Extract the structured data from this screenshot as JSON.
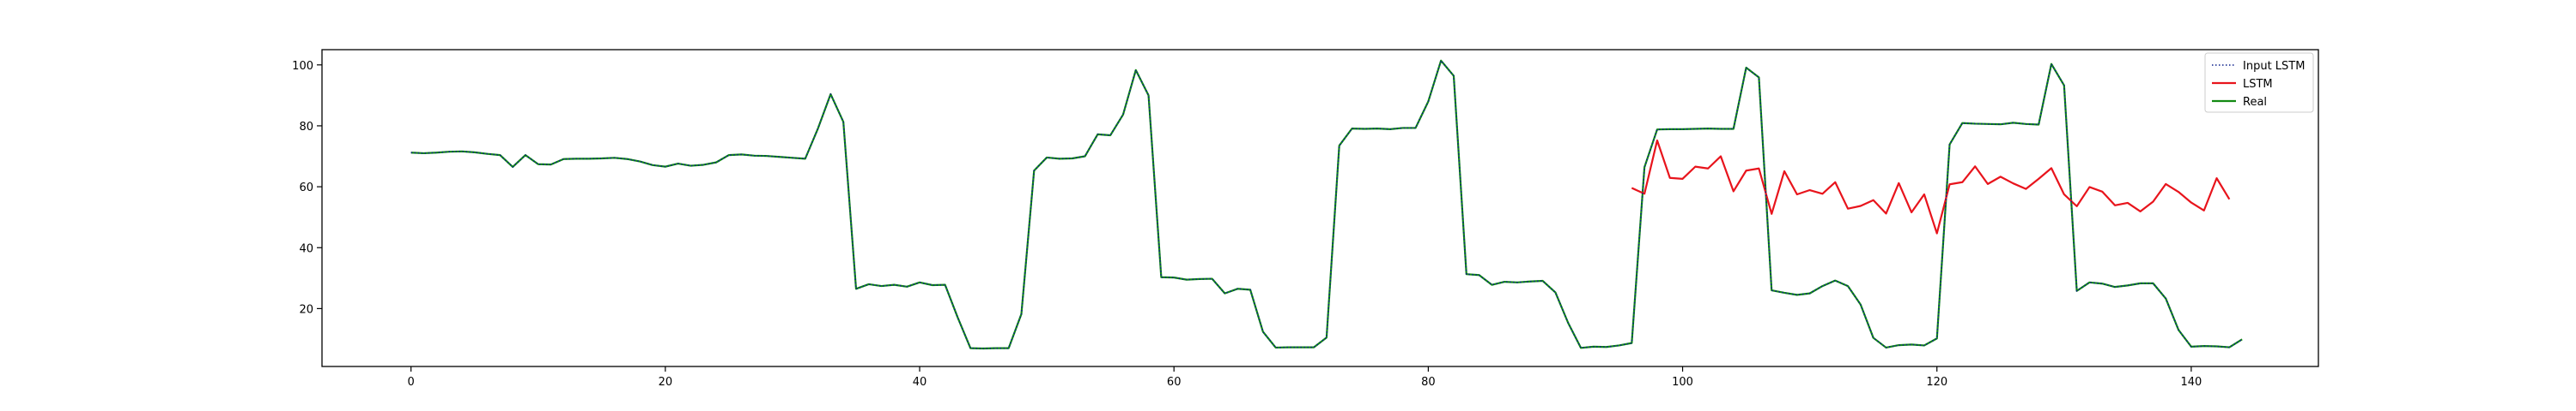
{
  "chart_data": {
    "type": "line",
    "title": "",
    "xlabel": "",
    "ylabel": "",
    "xlim": [
      -7,
      150
    ],
    "ylim": [
      1,
      105
    ],
    "xticks": [
      0,
      20,
      40,
      60,
      80,
      100,
      120,
      140
    ],
    "yticks": [
      20,
      40,
      60,
      80,
      100
    ],
    "grid": false,
    "legend_position": "top-right",
    "series": [
      {
        "name": "Input LSTM",
        "color": "#0b1f8a",
        "style": "dotted",
        "x_start": 0,
        "values": [
          71.2,
          71,
          71.2,
          71.5,
          71.6,
          71.3,
          70.8,
          70.4,
          66.5,
          70.4,
          67.4,
          67.3,
          69.1,
          69.2,
          69.2,
          69.3,
          69.5,
          69.1,
          68.3,
          67.1,
          66.6,
          67.6,
          66.9,
          67.2,
          68,
          70.4,
          70.6,
          70.2,
          70.1,
          69.8,
          69.5,
          69.2,
          79.1,
          90.4,
          81.3,
          26.5,
          28,
          27.4,
          27.8,
          27.2,
          28.6,
          27.7,
          27.8,
          17,
          7,
          6.9,
          7,
          7,
          18.2,
          65.3,
          69.6,
          69.2,
          69.3,
          70,
          77.2,
          76.9,
          83.7,
          98.3,
          90,
          30.3,
          30.2,
          29.5,
          29.7,
          29.8,
          25,
          26.5,
          26.2,
          12.4,
          7.2,
          7.3,
          7.3,
          7.3,
          10.5,
          73.5,
          79.1,
          79,
          79.1,
          78.9,
          79.3,
          79.3,
          88,
          101.4,
          96.4,
          31.3,
          31,
          27.8,
          28.8,
          28.6,
          28.9,
          29.1,
          25.3,
          15.3,
          7.1,
          7.5,
          7.4,
          7.9,
          8.7,
          66.4,
          78.8,
          78.9,
          78.9,
          79,
          79.1,
          79,
          79,
          99.1,
          95.9,
          26,
          25.2,
          24.5,
          25,
          27.4,
          29.2,
          27.4,
          21.3,
          10.4,
          7.2,
          8,
          8.2,
          7.9,
          10.2,
          73.9,
          80.9,
          80.7,
          80.6,
          80.5,
          81,
          80.6,
          80.4,
          100.3,
          93.3,
          25.8,
          28.6,
          28.2,
          27.1,
          27.6,
          28.3,
          28.3,
          23.3,
          13,
          7.5,
          7.7,
          7.6,
          7.3,
          9.9
        ]
      },
      {
        "name": "LSTM",
        "color": "#e8141c",
        "style": "solid",
        "x_start": 96,
        "values": [
          59.6,
          57.7,
          75.2,
          62.9,
          62.6,
          66.6,
          66,
          70,
          58.5,
          65.3,
          66,
          51.1,
          65.1,
          57.5,
          58.9,
          57.7,
          61.5,
          52.8,
          53.7,
          55.6,
          51.2,
          61.2,
          51.6,
          57.5,
          44.7,
          60.8,
          61.5,
          66.7,
          60.9,
          63.3,
          61.1,
          59.3,
          62.6,
          66.1,
          57.5,
          53.6,
          59.9,
          58.4,
          53.9,
          54.7,
          51.9,
          55.1,
          60.9,
          58.3,
          54.8,
          52.2,
          62.8,
          55.9
        ]
      },
      {
        "name": "Real",
        "color": "#138a13",
        "style": "solid",
        "x_start": 0,
        "values": [
          71.2,
          71,
          71.2,
          71.5,
          71.6,
          71.3,
          70.8,
          70.4,
          66.5,
          70.4,
          67.4,
          67.3,
          69.1,
          69.2,
          69.2,
          69.3,
          69.5,
          69.1,
          68.3,
          67.1,
          66.6,
          67.6,
          66.9,
          67.2,
          68,
          70.4,
          70.6,
          70.2,
          70.1,
          69.8,
          69.5,
          69.2,
          79.1,
          90.4,
          81.3,
          26.5,
          28,
          27.4,
          27.8,
          27.2,
          28.6,
          27.7,
          27.8,
          17,
          7,
          6.9,
          7,
          7,
          18.2,
          65.3,
          69.6,
          69.2,
          69.3,
          70,
          77.2,
          76.9,
          83.7,
          98.3,
          90,
          30.3,
          30.2,
          29.5,
          29.7,
          29.8,
          25,
          26.5,
          26.2,
          12.4,
          7.2,
          7.3,
          7.3,
          7.3,
          10.5,
          73.5,
          79.1,
          79,
          79.1,
          78.9,
          79.3,
          79.3,
          88,
          101.4,
          96.4,
          31.3,
          31,
          27.8,
          28.8,
          28.6,
          28.9,
          29.1,
          25.3,
          15.3,
          7.1,
          7.5,
          7.4,
          7.9,
          8.7,
          66.4,
          78.8,
          78.9,
          78.9,
          79,
          79.1,
          79,
          79,
          99.1,
          95.9,
          26,
          25.2,
          24.5,
          25,
          27.4,
          29.2,
          27.4,
          21.3,
          10.4,
          7.2,
          8,
          8.2,
          7.9,
          10.2,
          73.9,
          80.9,
          80.7,
          80.6,
          80.5,
          81,
          80.6,
          80.4,
          100.3,
          93.3,
          25.8,
          28.6,
          28.2,
          27.1,
          27.6,
          28.3,
          28.3,
          23.3,
          13,
          7.5,
          7.7,
          7.6,
          7.3,
          9.9
        ]
      }
    ]
  }
}
